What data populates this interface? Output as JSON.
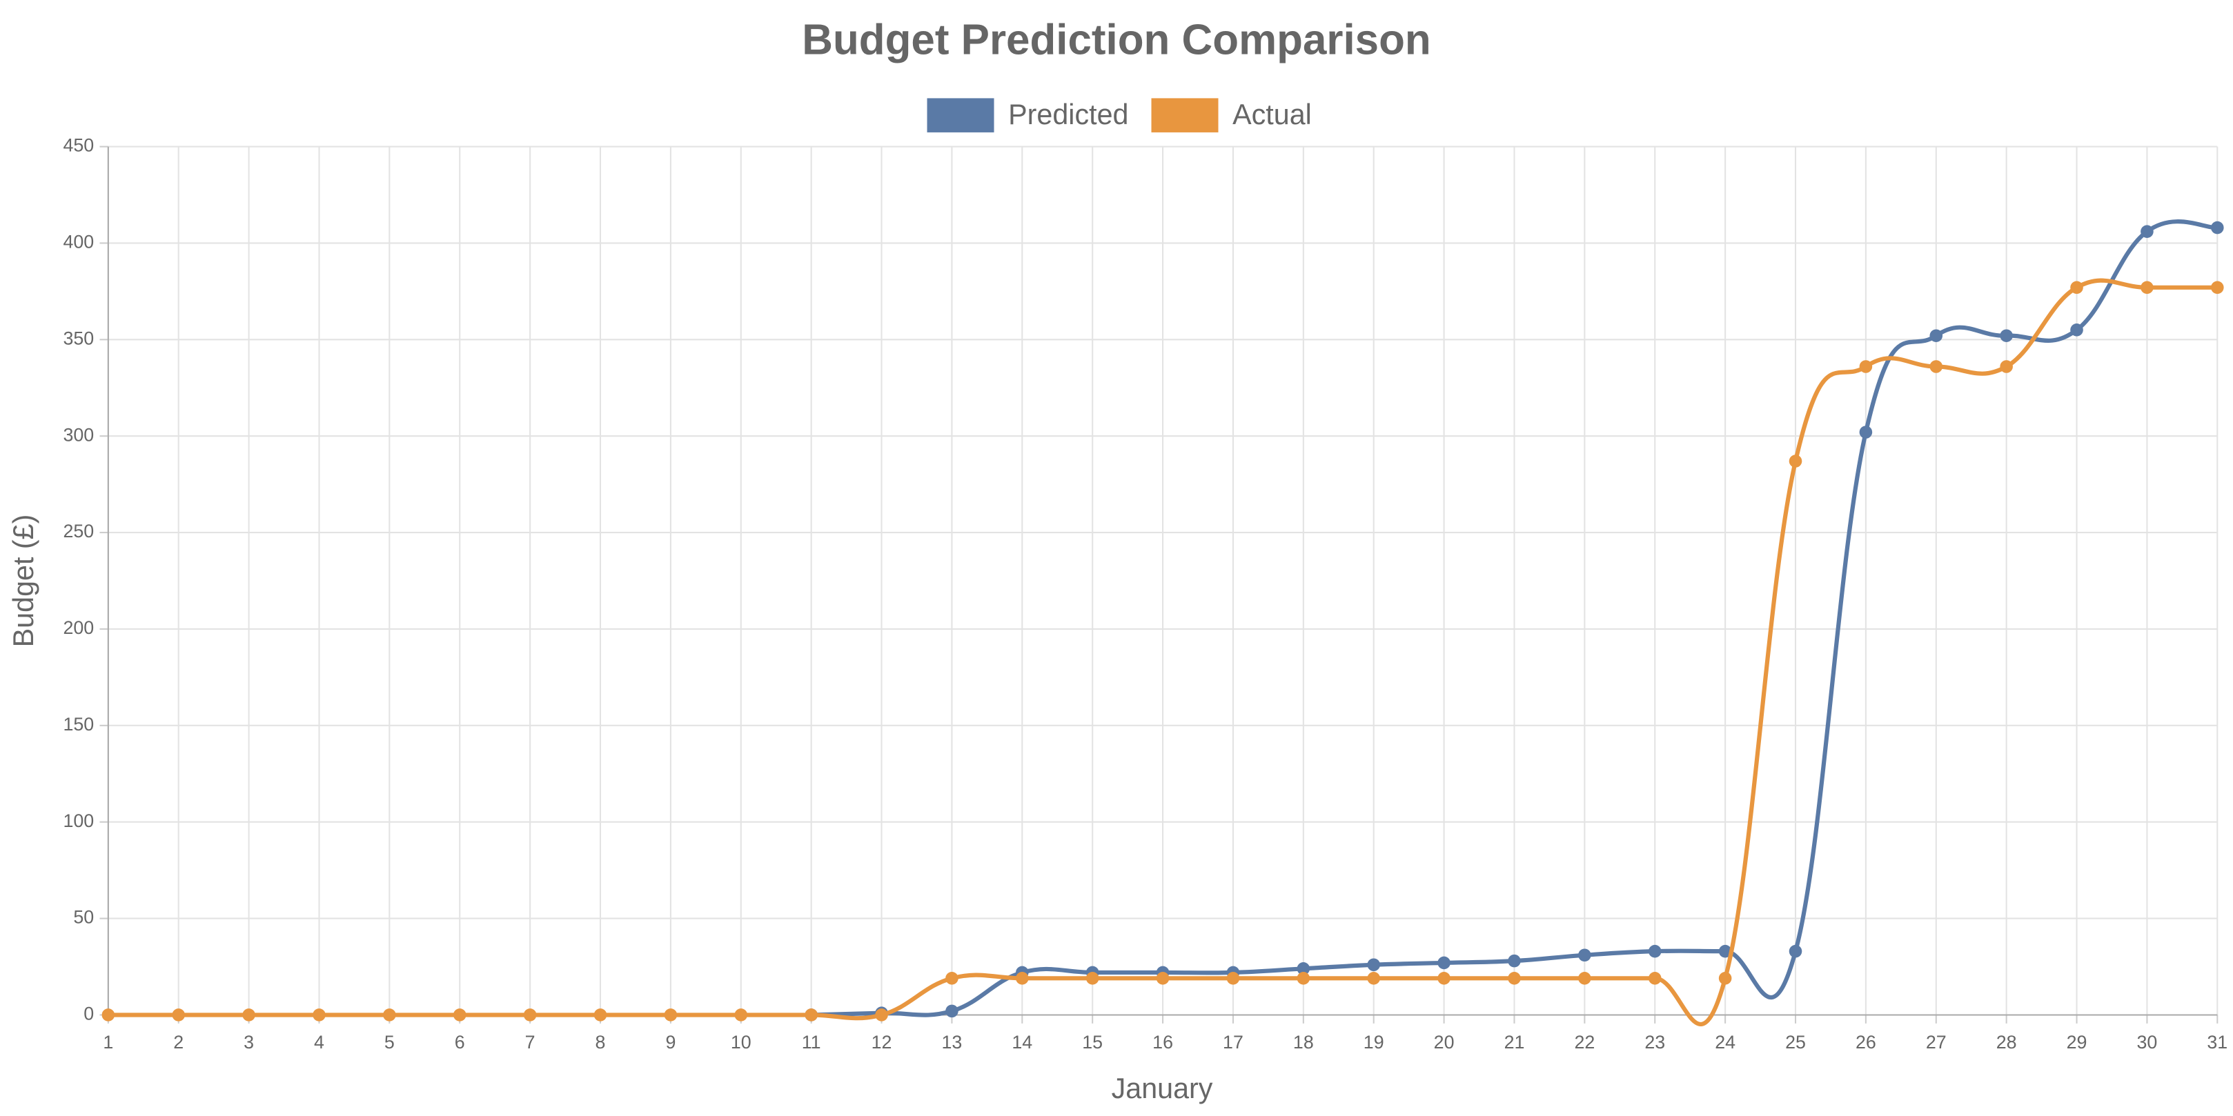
{
  "chart_data": {
    "type": "line",
    "title": "Budget Prediction Comparison",
    "x_label": "January",
    "y_label": "Budget (£)",
    "categories": [
      1,
      2,
      3,
      4,
      5,
      6,
      7,
      8,
      9,
      10,
      11,
      12,
      13,
      14,
      15,
      16,
      17,
      18,
      19,
      20,
      21,
      22,
      23,
      24,
      25,
      26,
      27,
      28,
      29,
      30,
      31
    ],
    "series": [
      {
        "name": "Predicted",
        "color": "#5a7aa6",
        "values": [
          null,
          null,
          null,
          null,
          null,
          null,
          null,
          null,
          null,
          null,
          0,
          1,
          2,
          22,
          22,
          22,
          22,
          24,
          26,
          27,
          28,
          31,
          33,
          33,
          33,
          302,
          352,
          352,
          355,
          406,
          408
        ]
      },
      {
        "name": "Actual",
        "color": "#e8963f",
        "values": [
          0,
          0,
          0,
          0,
          0,
          0,
          0,
          0,
          0,
          0,
          0,
          0,
          19,
          19,
          19,
          19,
          19,
          19,
          19,
          19,
          19,
          19,
          19,
          19,
          287,
          336,
          336,
          336,
          377,
          377,
          377
        ]
      }
    ],
    "ylim": [
      0,
      450
    ],
    "yticks": [
      0,
      50,
      100,
      150,
      200,
      250,
      300,
      350,
      400,
      450
    ],
    "grid": true,
    "legend": "top"
  }
}
